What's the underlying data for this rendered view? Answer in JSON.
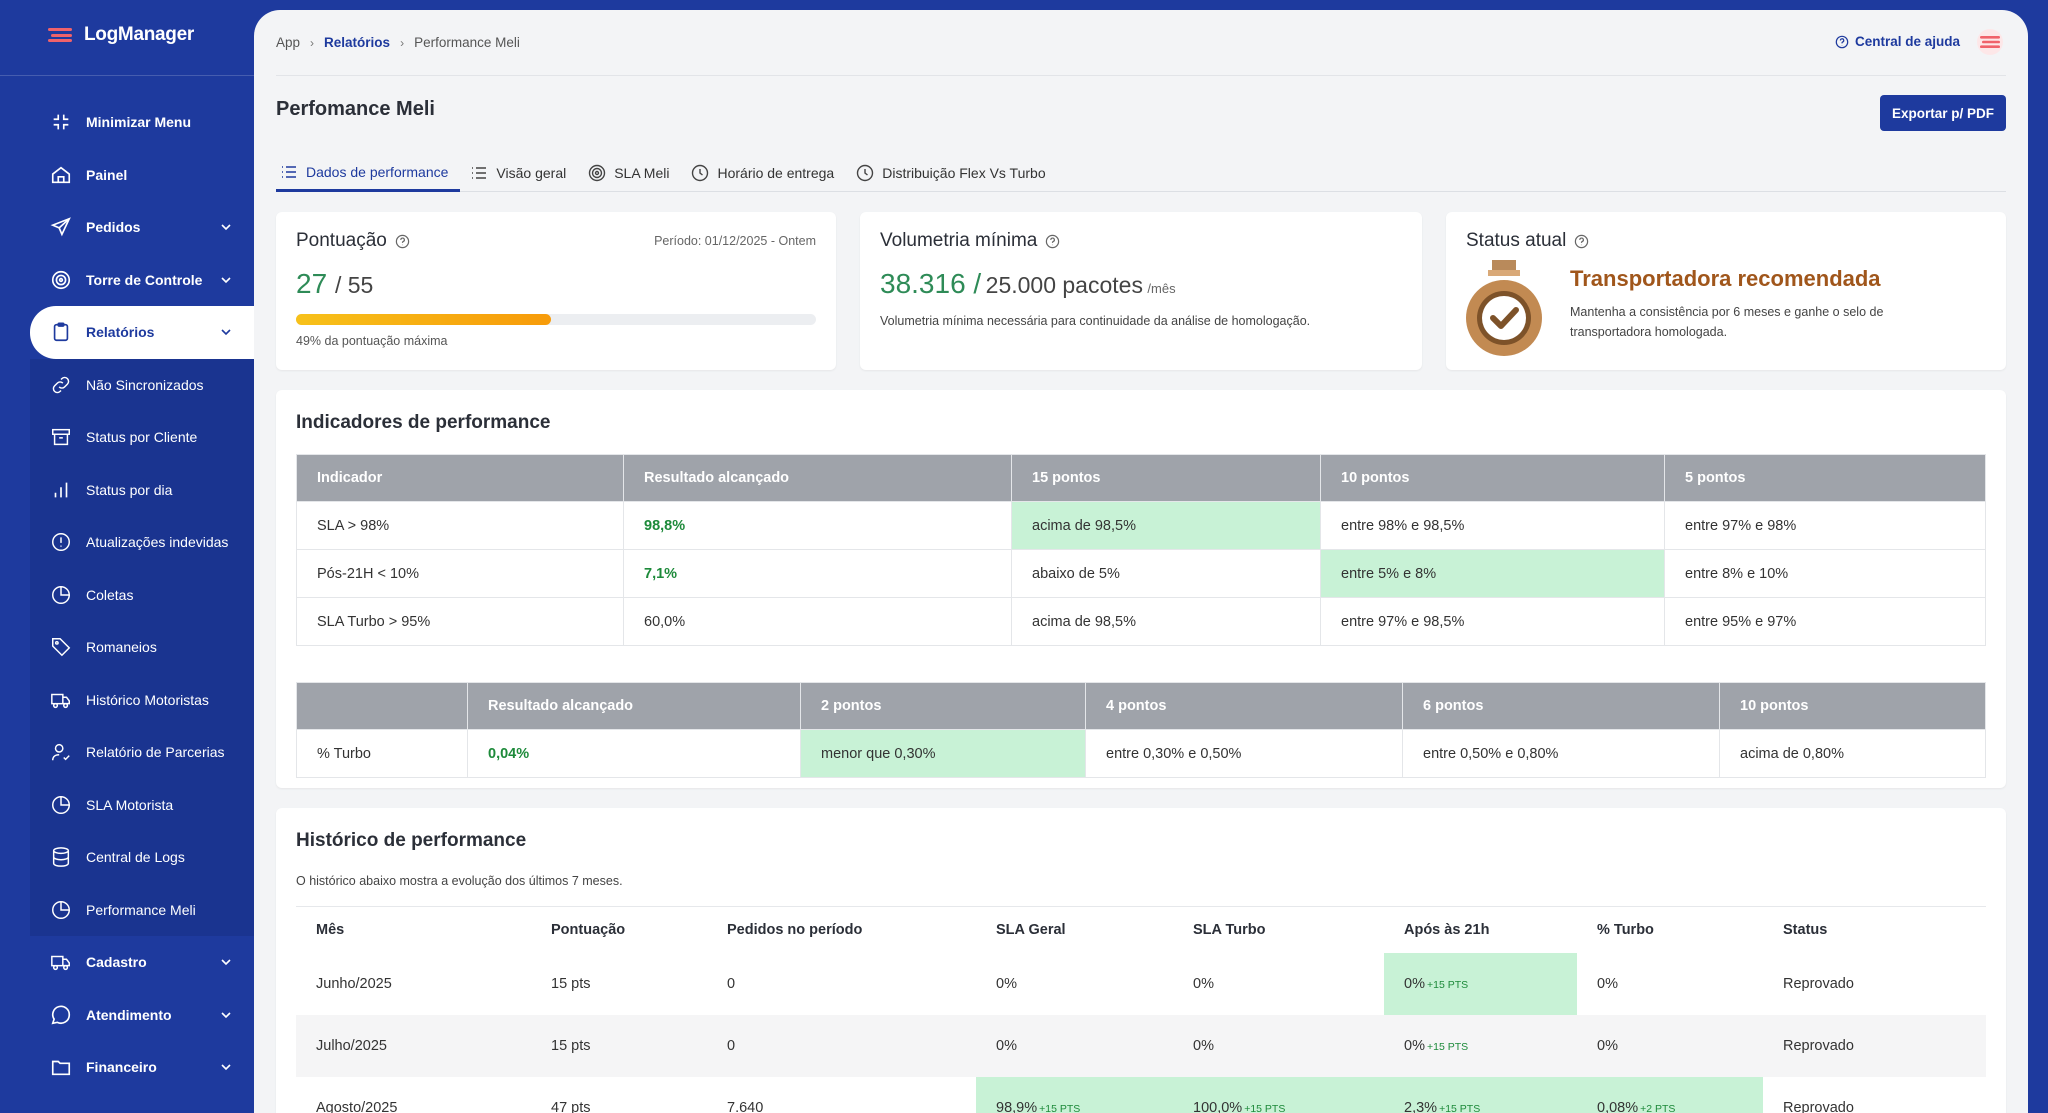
{
  "app": {
    "name": "LogManager"
  },
  "sidebar": {
    "items": [
      {
        "label": "Minimizar Menu"
      },
      {
        "label": "Painel"
      },
      {
        "label": "Pedidos"
      },
      {
        "label": "Torre de Controle"
      },
      {
        "label": "Relatórios"
      },
      {
        "label": "Cadastro"
      },
      {
        "label": "Atendimento"
      },
      {
        "label": "Financeiro"
      }
    ],
    "submenu": [
      {
        "label": "Não Sincronizados"
      },
      {
        "label": "Status por Cliente"
      },
      {
        "label": "Status por dia"
      },
      {
        "label": "Atualizações indevidas"
      },
      {
        "label": "Coletas"
      },
      {
        "label": "Romaneios"
      },
      {
        "label": "Histórico Motoristas"
      },
      {
        "label": "Relatório de Parcerias"
      },
      {
        "label": "SLA Motorista"
      },
      {
        "label": "Central de Logs"
      },
      {
        "label": "Performance Meli"
      }
    ]
  },
  "header": {
    "breadcrumb": [
      "App",
      "Relatórios",
      "Performance Meli"
    ],
    "help_label": "Central de ajuda"
  },
  "page": {
    "title": "Perfomance Meli",
    "export_label": "Exportar p/ PDF",
    "tabs": [
      {
        "label": "Dados de performance"
      },
      {
        "label": "Visão geral"
      },
      {
        "label": "SLA Meli"
      },
      {
        "label": "Horário de entrega"
      },
      {
        "label": "Distribuição Flex Vs Turbo"
      }
    ]
  },
  "score_card": {
    "title": "Pontuação",
    "period": "Período: 01/12/2025 - Ontem",
    "value": "27",
    "total": "/ 55",
    "progress": 0.49,
    "caption": "49% da pontuação máxima"
  },
  "volume_card": {
    "title": "Volumetria mínima",
    "value": "38.316 /",
    "target": "25.000 pacotes",
    "unit": "/mês",
    "caption": "Volumetria mínima necessária para continuidade da análise de homologação."
  },
  "status_card": {
    "title": "Status atual",
    "headline": "Transportadora recomendada",
    "text": "Mantenha a consistência por 6 meses e ganhe o selo de transportadora homologada."
  },
  "indicators": {
    "title": "Indicadores de performance",
    "table1": {
      "headers": [
        "Indicador",
        "Resultado alcançado",
        "15 pontos",
        "10 pontos",
        "5 pontos"
      ],
      "rows": [
        [
          "SLA > 98%",
          "98,8%",
          "acima de 98,5%",
          "entre 98% e 98,5%",
          "entre 97% e 98%"
        ],
        [
          "Pós-21H < 10%",
          "7,1%",
          "abaixo de 5%",
          "entre 5% e 8%",
          "entre 8% e 10%"
        ],
        [
          "SLA Turbo > 95%",
          "60,0%",
          "acima de 98,5%",
          "entre 97% e 98,5%",
          "entre 95% e 97%"
        ]
      ]
    },
    "table2": {
      "headers": [
        "",
        "Resultado alcançado",
        "2 pontos",
        "4 pontos",
        "6 pontos",
        "10 pontos"
      ],
      "rows": [
        [
          "% Turbo",
          "0,04%",
          "menor que 0,30%",
          "entre 0,30% e 0,50%",
          "entre 0,50% e 0,80%",
          "acima de 0,80%"
        ]
      ]
    }
  },
  "history": {
    "title": "Histórico de performance",
    "subtitle": "O histórico abaixo mostra a evolução dos últimos 7 meses.",
    "headers": [
      "Mês",
      "Pontuação",
      "Pedidos no período",
      "SLA Geral",
      "SLA Turbo",
      "Após às 21h",
      "% Turbo",
      "Status"
    ],
    "rows": [
      {
        "mes": "Junho/2025",
        "pont": "15 pts",
        "pedidos": "0",
        "sla": "0%",
        "sla_pts": "",
        "turbo": "0%",
        "turbo_pts": "",
        "apos": "0%",
        "apos_pts": "+15 PTS",
        "pct": "0%",
        "pct_pts": "",
        "status": "Reprovado"
      },
      {
        "mes": "Julho/2025",
        "pont": "15 pts",
        "pedidos": "0",
        "sla": "0%",
        "sla_pts": "",
        "turbo": "0%",
        "turbo_pts": "",
        "apos": "0%",
        "apos_pts": "+15 PTS",
        "pct": "0%",
        "pct_pts": "",
        "status": "Reprovado"
      },
      {
        "mes": "Agosto/2025",
        "pont": "47 pts",
        "pedidos": "7.640",
        "sla": "98,9%",
        "sla_pts": "+15 PTS",
        "turbo": "100,0%",
        "turbo_pts": "+15 PTS",
        "apos": "2,3%",
        "apos_pts": "+15 PTS",
        "pct": "0,08%",
        "pct_pts": "+2 PTS",
        "status": "Reprovado"
      }
    ]
  },
  "colors": {
    "brand": "#1e3a9e",
    "success": "#1d8a3a",
    "highlight": "#c8f2d6",
    "danger": "#d9363e",
    "medal": "#c28a52"
  }
}
